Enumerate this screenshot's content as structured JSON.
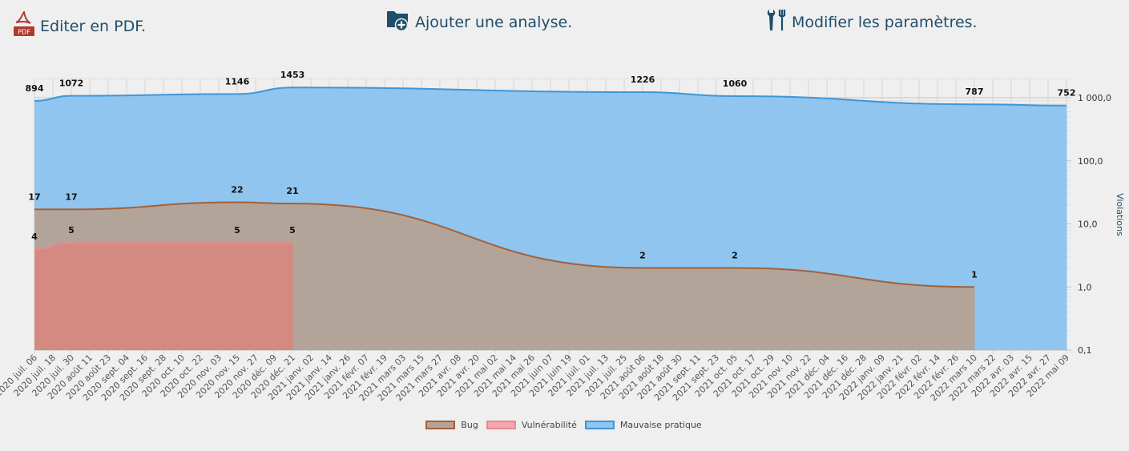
{
  "toolbar": {
    "pdf_label": "Editer en PDF.",
    "add_label": "Ajouter une analyse.",
    "params_label": "Modifier les paramètres.",
    "pdf_badge": "PDF"
  },
  "colors": {
    "text_blue": "#1f4e6b",
    "bug_fill": "#b5a294",
    "bug_line": "#a36138",
    "vuln_fill": "#d9857d",
    "vuln_line": "#e58a93",
    "bad_fill": "#8fc5ee",
    "bad_line": "#3f96d6"
  },
  "chart_data": {
    "type": "area",
    "scale": "log",
    "ylabel": "Violations",
    "yticks": [
      "0,1",
      "1,0",
      "10,0",
      "100,0",
      "1 000,0"
    ],
    "ytick_values": [
      0.1,
      1,
      10,
      100,
      1000
    ],
    "ylim": [
      0.1,
      1000
    ],
    "grid": true,
    "legend_position": "bottom",
    "categories": [
      "2020 juil. 06",
      "2020 juil. 18",
      "2020 juil. 30",
      "2020 août 11",
      "2020 août 23",
      "2020 sept. 04",
      "2020 sept. 16",
      "2020 sept. 28",
      "2020 oct. 10",
      "2020 oct. 22",
      "2020 nov. 03",
      "2020 nov. 15",
      "2020 nov. 27",
      "2020 déc. 09",
      "2020 déc. 21",
      "2021 janv. 02",
      "2021 janv. 14",
      "2021 janv. 26",
      "2021 févr. 07",
      "2021 févr. 19",
      "2021 mars 03",
      "2021 mars 15",
      "2021 mars 27",
      "2021 avr. 08",
      "2021 avr. 20",
      "2021 mai 02",
      "2021 mai 14",
      "2021 mai 26",
      "2021 juin 07",
      "2021 juin 19",
      "2021 juil. 01",
      "2021 juil. 13",
      "2021 juil. 25",
      "2021 août 06",
      "2021 août 18",
      "2021 août 30",
      "2021 sept. 11",
      "2021 sept. 23",
      "2021 oct. 05",
      "2021 oct. 17",
      "2021 oct. 29",
      "2021 nov. 10",
      "2021 nov. 22",
      "2021 déc. 04",
      "2021 déc. 16",
      "2021 déc. 28",
      "2022 janv. 09",
      "2022 janv. 21",
      "2022 févr. 02",
      "2022 févr. 14",
      "2022 févr. 26",
      "2022 mars 10",
      "2022 mars 22",
      "2022 avr. 03",
      "2022 avr. 15",
      "2022 avr. 27",
      "2022 mai 09"
    ],
    "series": [
      {
        "name": "Mauvaise pratique",
        "points": [
          {
            "x": "2020 juil. 06",
            "y": 894,
            "label": "894"
          },
          {
            "x": "2020 juil. 30",
            "y": 1072,
            "label": "1072"
          },
          {
            "x": "2020 nov. 15",
            "y": 1146,
            "label": "1146"
          },
          {
            "x": "2020 déc. 21",
            "y": 1453,
            "label": "1453"
          },
          {
            "x": "2021 août 06",
            "y": 1226,
            "label": "1226"
          },
          {
            "x": "2021 oct. 05",
            "y": 1060,
            "label": "1060"
          },
          {
            "x": "2022 mars 10",
            "y": 787,
            "label": "787"
          },
          {
            "x": "2022 mai 09",
            "y": 752,
            "label": "752"
          }
        ]
      },
      {
        "name": "Bug",
        "points": [
          {
            "x": "2020 juil. 06",
            "y": 17,
            "label": "17"
          },
          {
            "x": "2020 juil. 30",
            "y": 17,
            "label": "17"
          },
          {
            "x": "2020 nov. 15",
            "y": 22,
            "label": "22"
          },
          {
            "x": "2020 déc. 21",
            "y": 21,
            "label": "21"
          },
          {
            "x": "2021 août 06",
            "y": 2,
            "label": "2"
          },
          {
            "x": "2021 oct. 05",
            "y": 2,
            "label": "2"
          },
          {
            "x": "2022 mars 10",
            "y": 1,
            "label": "1"
          }
        ]
      },
      {
        "name": "Vulnérabilité",
        "points": [
          {
            "x": "2020 juil. 06",
            "y": 4,
            "label": "4"
          },
          {
            "x": "2020 juil. 30",
            "y": 5,
            "label": "5"
          },
          {
            "x": "2020 nov. 15",
            "y": 5,
            "label": "5"
          },
          {
            "x": "2020 déc. 21",
            "y": 5,
            "label": "5"
          }
        ]
      }
    ],
    "legend": [
      "Bug",
      "Vulnérabilité",
      "Mauvaise pratique"
    ]
  }
}
